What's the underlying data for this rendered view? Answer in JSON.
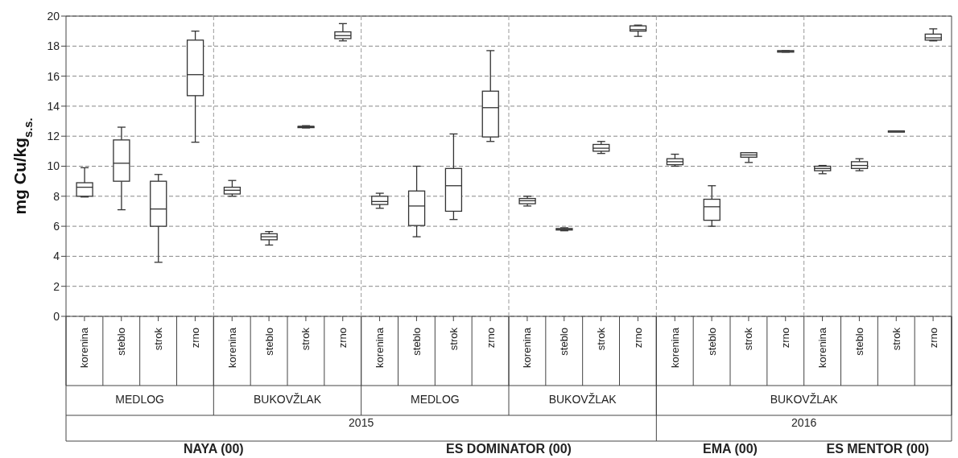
{
  "chart_data": {
    "type": "box",
    "ylabel": "mg Cu/kg$_{s.s.}$",
    "categories": [
      "korenina",
      "steblo",
      "strok",
      "zrno",
      "korenina",
      "steblo",
      "strok",
      "zrno",
      "korenina",
      "steblo",
      "strok",
      "zrno",
      "korenina",
      "steblo",
      "strok",
      "zrno",
      "korenina",
      "steblo",
      "strok",
      "zrno",
      "korenina",
      "steblo",
      "strok",
      "zrno"
    ],
    "boxes": [
      {
        "low": 7.95,
        "q1": 8.0,
        "median": 8.6,
        "q3": 8.9,
        "high": 9.9
      },
      {
        "low": 7.1,
        "q1": 9.0,
        "median": 10.2,
        "q3": 11.75,
        "high": 12.6
      },
      {
        "low": 3.6,
        "q1": 6.0,
        "median": 7.15,
        "q3": 9.0,
        "high": 9.45
      },
      {
        "low": 11.6,
        "q1": 14.7,
        "median": 16.1,
        "q3": 18.4,
        "high": 19.0
      },
      {
        "low": 8.0,
        "q1": 8.15,
        "median": 8.4,
        "q3": 8.6,
        "high": 9.05
      },
      {
        "low": 4.75,
        "q1": 5.1,
        "median": 5.3,
        "q3": 5.5,
        "high": 5.65
      },
      {
        "low": 12.55,
        "q1": 12.6,
        "median": 12.65,
        "q3": 12.65,
        "high": 12.7
      },
      {
        "low": 18.35,
        "q1": 18.5,
        "median": 18.7,
        "q3": 18.95,
        "high": 19.5
      },
      {
        "low": 7.2,
        "q1": 7.45,
        "median": 7.65,
        "q3": 8.0,
        "high": 8.2
      },
      {
        "low": 5.3,
        "q1": 6.05,
        "median": 7.35,
        "q3": 8.35,
        "high": 10.0
      },
      {
        "low": 6.45,
        "q1": 7.0,
        "median": 8.7,
        "q3": 9.85,
        "high": 12.15
      },
      {
        "low": 11.65,
        "q1": 11.95,
        "median": 13.9,
        "q3": 15.0,
        "high": 17.7
      },
      {
        "low": 7.35,
        "q1": 7.5,
        "median": 7.7,
        "q3": 7.85,
        "high": 8.0
      },
      {
        "low": 5.7,
        "q1": 5.75,
        "median": 5.8,
        "q3": 5.85,
        "high": 5.9
      },
      {
        "low": 10.85,
        "q1": 11.0,
        "median": 11.2,
        "q3": 11.45,
        "high": 11.65
      },
      {
        "low": 18.65,
        "q1": 19.0,
        "median": 19.1,
        "q3": 19.35,
        "high": 19.4
      },
      {
        "low": 10.0,
        "q1": 10.1,
        "median": 10.3,
        "q3": 10.5,
        "high": 10.8
      },
      {
        "low": 6.0,
        "q1": 6.4,
        "median": 7.3,
        "q3": 7.8,
        "high": 8.7
      },
      {
        "low": 10.25,
        "q1": 10.6,
        "median": 10.75,
        "q3": 10.9,
        "high": 10.9
      },
      {
        "low": 17.6,
        "q1": 17.6,
        "median": 17.65,
        "q3": 17.7,
        "high": 17.7
      },
      {
        "low": 9.5,
        "q1": 9.7,
        "median": 9.85,
        "q3": 10.0,
        "high": 10.05
      },
      {
        "low": 9.7,
        "q1": 9.85,
        "median": 10.05,
        "q3": 10.3,
        "high": 10.5
      },
      {
        "low": 12.35,
        "q1": 12.35,
        "median": 12.35,
        "q3": 12.35,
        "high": 12.35
      },
      {
        "low": 18.35,
        "q1": 18.4,
        "median": 18.55,
        "q3": 18.8,
        "high": 19.15
      }
    ],
    "color": "#333333",
    "ylim": [
      0,
      20
    ],
    "yticks": [
      0,
      2,
      4,
      6,
      8,
      10,
      12,
      14,
      16,
      18,
      20
    ],
    "grid": "y",
    "annotations": [
      "MEDLOG",
      "BUKOVŽLAK",
      "MEDLOG",
      "BUKOVŽLAK",
      "BUKOVŽLAK",
      "2015",
      "2016",
      "NAYA  (00)",
      "ES DOMINATOR (00)",
      "EMA (00)",
      "ES MENTOR (00)"
    ]
  }
}
